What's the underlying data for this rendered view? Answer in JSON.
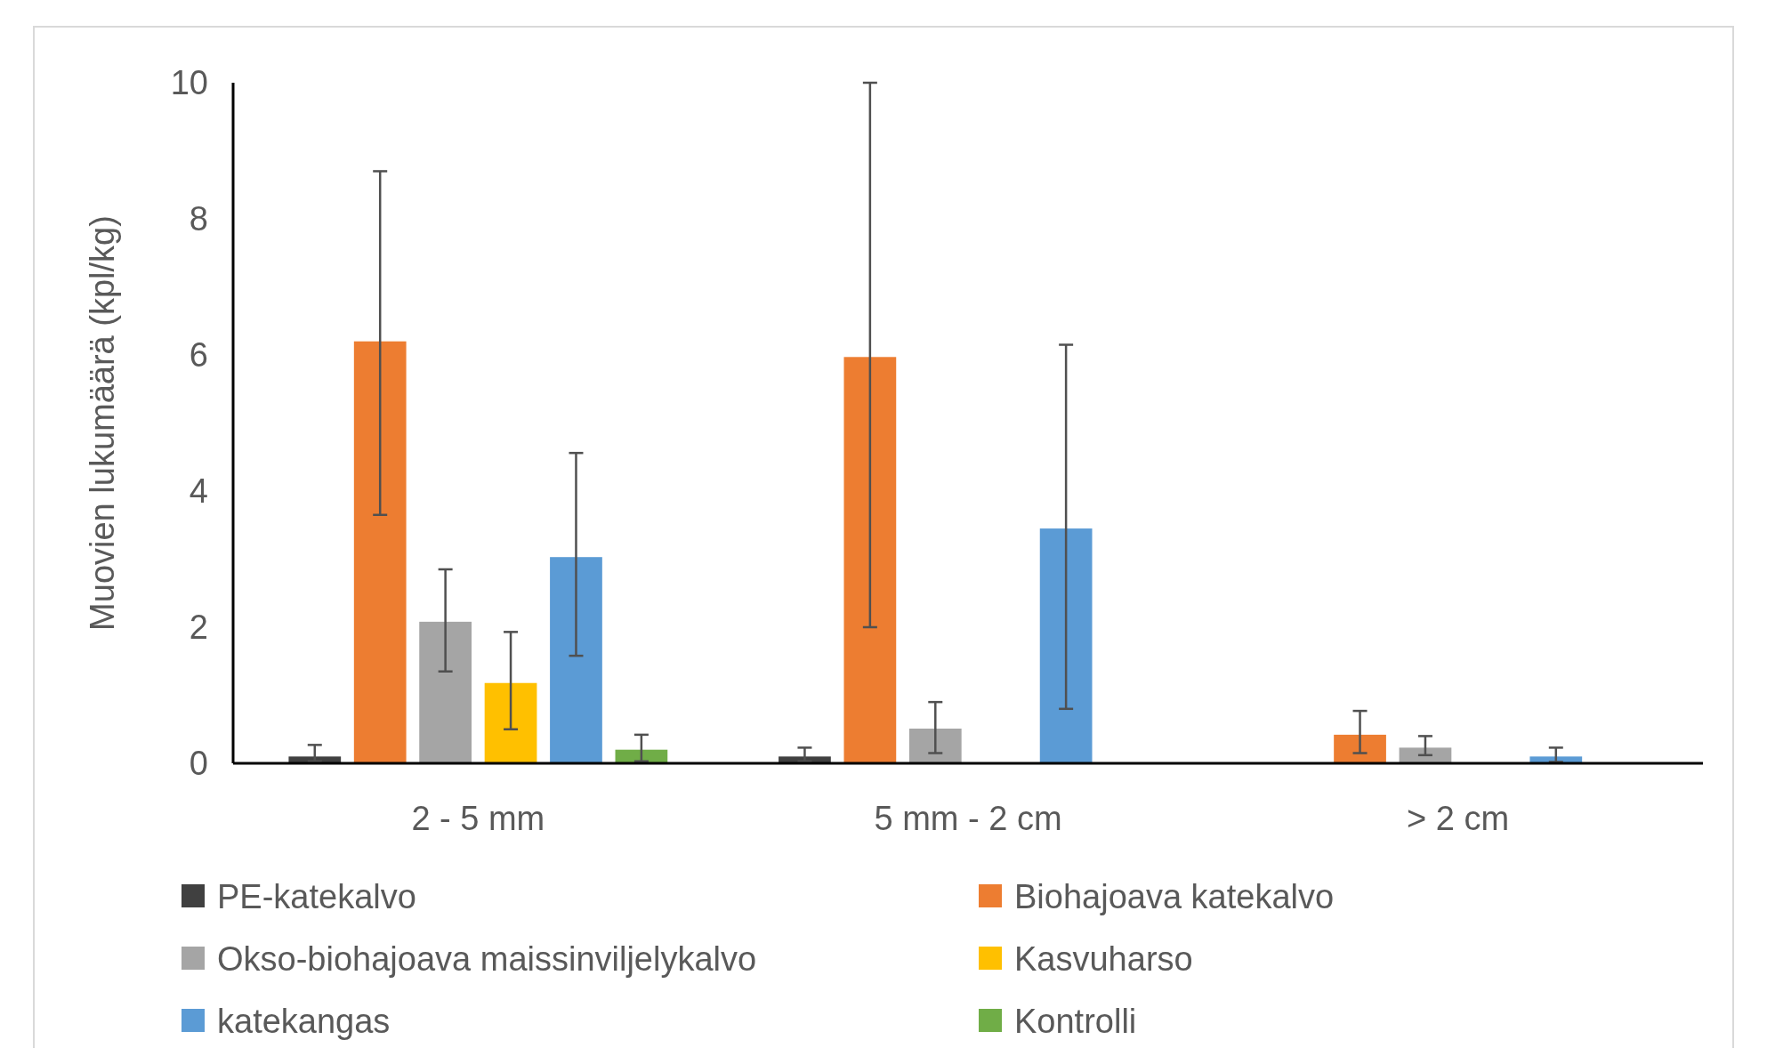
{
  "chart_data": {
    "type": "bar",
    "ylabel": "Muovien lukumäärä  (kpl/kg)",
    "categories": [
      "2 - 5 mm",
      "5 mm - 2 cm",
      "> 2 cm"
    ],
    "series": [
      {
        "name": "PE-katekalvo",
        "color": "#404040",
        "values": [
          0.1,
          0.1,
          null
        ],
        "errors": [
          [
            0.03,
            0.27
          ],
          [
            0.03,
            0.23
          ],
          null
        ]
      },
      {
        "name": "Biohajoava katekalvo",
        "color": "#ed7d31",
        "values": [
          6.2,
          5.97,
          0.42
        ],
        "errors": [
          [
            3.65,
            8.7
          ],
          [
            2.0,
            10.0
          ],
          [
            0.15,
            0.77
          ]
        ]
      },
      {
        "name": "Okso-biohajoava maissinviljelykalvo",
        "color": "#a5a5a5",
        "values": [
          2.08,
          0.51,
          0.23
        ],
        "errors": [
          [
            1.35,
            2.85
          ],
          [
            0.15,
            0.9
          ],
          [
            0.12,
            0.4
          ]
        ]
      },
      {
        "name": "Kasvuharso",
        "color": "#ffc000",
        "values": [
          1.18,
          null,
          null
        ],
        "errors": [
          [
            0.5,
            1.93
          ],
          null,
          null
        ]
      },
      {
        "name": "katekangas",
        "color": "#5b9bd5",
        "values": [
          3.03,
          3.45,
          0.1
        ],
        "errors": [
          [
            1.58,
            4.56
          ],
          [
            0.8,
            6.15
          ],
          [
            0.02,
            0.23
          ]
        ]
      },
      {
        "name": "Kontrolli",
        "color": "#70ad47",
        "values": [
          0.2,
          null,
          null
        ],
        "errors": [
          [
            0.03,
            0.42
          ],
          null,
          null
        ]
      }
    ],
    "ylim": [
      0,
      10
    ],
    "yticks": [
      0,
      2,
      4,
      6,
      8,
      10
    ],
    "grid": false,
    "legend": "bottom"
  }
}
